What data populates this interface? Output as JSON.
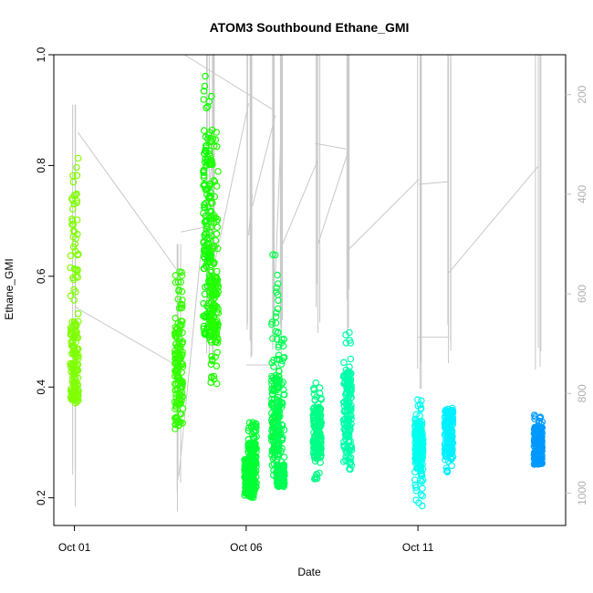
{
  "chart_data": {
    "type": "scatter",
    "title": "ATOM3 Southbound Ethane_GMI",
    "xlabel": "Date",
    "ylabel": "Ethane_GMI",
    "x_range_days": [
      -0.6,
      14.3
    ],
    "x_ticks": [
      {
        "label": "Oct 01",
        "day": 0
      },
      {
        "label": "Oct 06",
        "day": 5
      },
      {
        "label": "Oct 11",
        "day": 10
      }
    ],
    "ylim": [
      0.15,
      1.0
    ],
    "y_ticks": [
      0.2,
      0.4,
      0.6,
      0.8,
      1.0
    ],
    "y_tick_labels": [
      "0.2",
      "0.4",
      "0.6",
      "0.8",
      "1.0"
    ],
    "right_axis": {
      "ticks": [
        200,
        400,
        600,
        800,
        1000
      ],
      "tick_labels": [
        "200",
        "400",
        "600",
        "800",
        "1000"
      ],
      "range_top_to_bottom": [
        120,
        1065
      ],
      "color": "#c0c0c0"
    },
    "series_colors": [
      "#7fff00",
      "#33ff00",
      "#00ff11",
      "#00ff66",
      "#00ffaa",
      "#00ffee",
      "#00ffff",
      "#0099ff"
    ],
    "clusters": [
      {
        "day": 0.0,
        "ymin": 0.37,
        "ymax": 0.83,
        "color": "#7fff00",
        "dense": [
          0.37,
          0.52
        ],
        "right_top": 220,
        "right_bot": 1060
      },
      {
        "day": 3.04,
        "ymin": 0.32,
        "ymax": 0.62,
        "color": "#33ff00",
        "dense": [
          0.33,
          0.52
        ],
        "right_top": 500,
        "right_bot": 1060
      },
      {
        "day": 3.87,
        "ymin": 0.49,
        "ymax": 0.97,
        "color": "#11ff00",
        "dense": [
          0.49,
          0.84
        ],
        "right_top": 120,
        "right_bot": 750
      },
      {
        "day": 4.07,
        "ymin": 0.4,
        "ymax": 0.87,
        "color": "#22ff00",
        "dense": [
          0.48,
          0.6
        ],
        "right_top": 120,
        "right_bot": 760
      },
      {
        "day": 5.07,
        "ymin": 0.2,
        "ymax": 0.27,
        "color": "#00ff33",
        "dense": [
          0.21,
          0.27
        ],
        "right_top": 110,
        "right_bot": 720
      },
      {
        "day": 5.18,
        "ymin": 0.2,
        "ymax": 0.34,
        "color": "#00ff33",
        "dense": [
          0.21,
          0.3
        ],
        "right_top": 110,
        "right_bot": 770
      },
      {
        "day": 5.85,
        "ymin": 0.24,
        "ymax": 0.64,
        "color": "#00ff44",
        "dense": [
          0.27,
          0.42
        ],
        "right_top": 110,
        "right_bot": 740
      },
      {
        "day": 6.0,
        "ymin": 0.22,
        "ymax": 0.5,
        "color": "#00ff55",
        "dense": [
          0.22,
          0.26
        ],
        "right_top": 110,
        "right_bot": 720
      },
      {
        "day": 7.07,
        "ymin": 0.23,
        "ymax": 0.41,
        "color": "#00ff88",
        "dense": [
          0.27,
          0.36
        ],
        "right_top": 110,
        "right_bot": 680
      },
      {
        "day": 7.95,
        "ymin": 0.25,
        "ymax": 0.51,
        "color": "#00ffaa",
        "dense": [
          0.28,
          0.43
        ],
        "right_top": 110,
        "right_bot": 700
      },
      {
        "day": 10.03,
        "ymin": 0.18,
        "ymax": 0.38,
        "color": "#00ffee",
        "dense": [
          0.25,
          0.34
        ],
        "right_top": 110,
        "right_bot": 800
      },
      {
        "day": 10.9,
        "ymin": 0.24,
        "ymax": 0.37,
        "color": "#00f0ff",
        "dense": [
          0.27,
          0.36
        ],
        "right_top": 110,
        "right_bot": 740
      },
      {
        "day": 13.5,
        "ymin": 0.26,
        "ymax": 0.35,
        "color": "#0099ff",
        "dense": [
          0.26,
          0.33
        ],
        "right_top": 110,
        "right_bot": 780
      }
    ]
  }
}
